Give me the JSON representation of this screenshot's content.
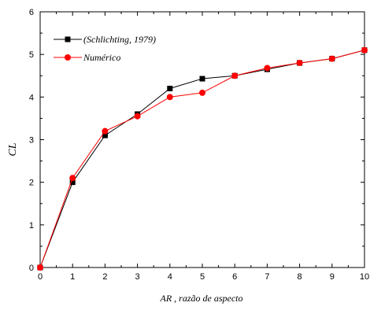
{
  "chart_data": {
    "type": "line",
    "xlabel": "AR , razão de aspecto",
    "ylabel": "CL",
    "xlim": [
      0,
      10
    ],
    "ylim": [
      0,
      6
    ],
    "xticks": [
      "0",
      "1",
      "2",
      "3",
      "4",
      "5",
      "6",
      "7",
      "8",
      "9",
      "10"
    ],
    "yticks": [
      "0",
      "1",
      "2",
      "3",
      "4",
      "5",
      "6"
    ],
    "grid": false,
    "legend_position": "top-left",
    "series": [
      {
        "name": "(Schlichting, 1979)",
        "color": "#000000",
        "marker": "square",
        "x": [
          0,
          1,
          2,
          3,
          4,
          5,
          6,
          7,
          8,
          9,
          10
        ],
        "y": [
          0,
          2.0,
          3.1,
          3.6,
          4.2,
          4.43,
          4.5,
          4.65,
          4.8,
          4.9,
          5.1
        ]
      },
      {
        "name": "Numérico",
        "color": "#ff0000",
        "marker": "circle",
        "x": [
          0,
          1,
          2,
          3,
          4,
          5,
          6,
          7,
          8,
          9,
          10
        ],
        "y": [
          0,
          2.1,
          3.2,
          3.55,
          4.0,
          4.1,
          4.5,
          4.68,
          4.8,
          4.9,
          5.1
        ]
      }
    ]
  }
}
